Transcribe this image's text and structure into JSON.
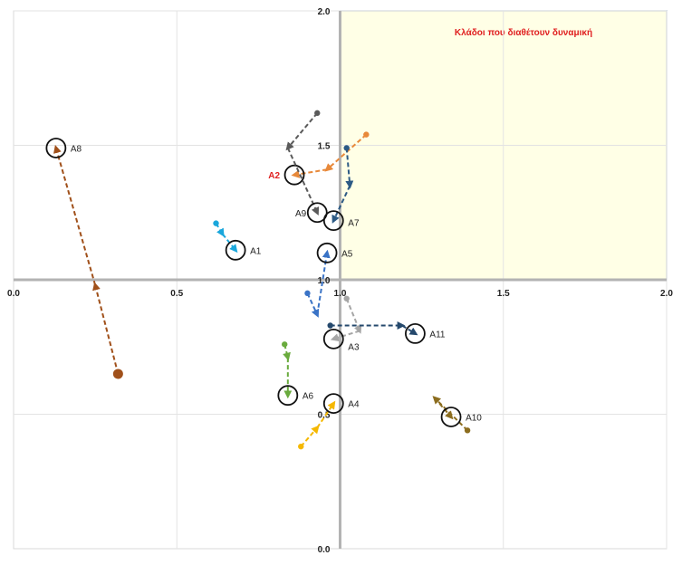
{
  "chart_data": {
    "type": "scatter",
    "title": "",
    "xlabel": "",
    "ylabel": "",
    "xlim": [
      0.0,
      2.0
    ],
    "ylim": [
      0.0,
      2.0
    ],
    "axis_cross": {
      "x": 1.0,
      "y": 1.0
    },
    "grid": true,
    "quadrant": {
      "label": "Κλάδοι που διαθέτουν δυναμική",
      "x_range": [
        1.0,
        2.0
      ],
      "y_range": [
        1.0,
        2.0
      ],
      "fill_color": "#ffffe6",
      "label_color": "#e02020"
    },
    "x_ticks": [
      "0.0",
      "0.5",
      "1.0",
      "1.5",
      "2.0"
    ],
    "y_ticks": [
      "0.0",
      "0.5",
      "1.0",
      "1.5",
      "2.0"
    ],
    "series": [
      {
        "name": "A1",
        "color": "#1aa7dc",
        "label_color": "#222222",
        "points": [
          [
            0.62,
            1.21
          ],
          [
            0.64,
            1.17
          ],
          [
            0.68,
            1.11
          ]
        ],
        "current": [
          0.68,
          1.11
        ]
      },
      {
        "name": "A2",
        "color": "#e8893a",
        "label_color": "#e02020",
        "points": [
          [
            1.08,
            1.54
          ],
          [
            0.96,
            1.41
          ],
          [
            0.86,
            1.39
          ]
        ],
        "current": [
          0.86,
          1.39
        ]
      },
      {
        "name": "A3",
        "color": "#a6a6a6",
        "label_color": "#222222",
        "points": [
          [
            1.02,
            0.93
          ],
          [
            1.06,
            0.81
          ],
          [
            0.98,
            0.78
          ]
        ],
        "current": [
          0.98,
          0.78
        ]
      },
      {
        "name": "A4",
        "color": "#f5b800",
        "label_color": "#222222",
        "points": [
          [
            0.88,
            0.38
          ],
          [
            0.93,
            0.45
          ],
          [
            0.98,
            0.54
          ]
        ],
        "current": [
          0.98,
          0.54
        ]
      },
      {
        "name": "A5",
        "color": "#3a73c6",
        "label_color": "#222222",
        "points": [
          [
            0.9,
            0.95
          ],
          [
            0.93,
            0.87
          ],
          [
            0.96,
            1.1
          ]
        ],
        "current": [
          0.96,
          1.1
        ]
      },
      {
        "name": "A6",
        "color": "#6aab3e",
        "label_color": "#222222",
        "points": [
          [
            0.83,
            0.76
          ],
          [
            0.84,
            0.71
          ],
          [
            0.84,
            0.57
          ]
        ],
        "current": [
          0.84,
          0.57
        ]
      },
      {
        "name": "A7",
        "color": "#2c5a85",
        "label_color": "#222222",
        "points": [
          [
            1.02,
            1.49
          ],
          [
            1.03,
            1.35
          ],
          [
            0.98,
            1.22
          ]
        ],
        "current": [
          0.98,
          1.22
        ]
      },
      {
        "name": "A8",
        "color": "#a0501a",
        "label_color": "#222222",
        "points": [
          [
            0.32,
            0.65
          ],
          [
            0.25,
            0.98
          ],
          [
            0.13,
            1.49
          ]
        ],
        "current": [
          0.13,
          1.49
        ]
      },
      {
        "name": "A9",
        "color": "#5a5a5a",
        "label_color": "#222222",
        "points": [
          [
            0.93,
            1.62
          ],
          [
            0.84,
            1.49
          ],
          [
            0.93,
            1.25
          ]
        ],
        "current": [
          0.93,
          1.25
        ]
      },
      {
        "name": "A10",
        "color": "#8c6d1f",
        "label_color": "#222222",
        "points": [
          [
            1.39,
            0.44
          ],
          [
            1.29,
            0.56
          ],
          [
            1.34,
            0.49
          ]
        ],
        "current": [
          1.34,
          0.49
        ]
      },
      {
        "name": "A11",
        "color": "#24486c",
        "label_color": "#222222",
        "points": [
          [
            0.97,
            0.83
          ],
          [
            1.19,
            0.83
          ],
          [
            1.23,
            0.8
          ]
        ],
        "current": [
          1.23,
          0.8
        ]
      }
    ]
  }
}
